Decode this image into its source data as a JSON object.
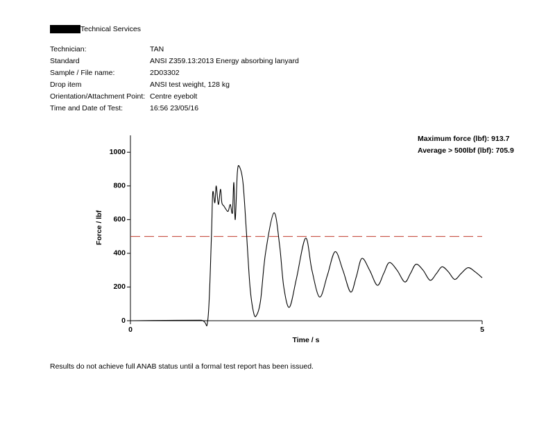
{
  "header": {
    "title": "Technical Services"
  },
  "fields": [
    {
      "label": "Technician:",
      "value": "TAN"
    },
    {
      "label": "Standard",
      "value": "ANSI Z359.13:2013 Energy absorbing lanyard"
    },
    {
      "label": "Sample / File name:",
      "value": "2D03302"
    },
    {
      "label": "Drop item",
      "value": "ANSI test weight, 128 kg"
    },
    {
      "label": "Orientation/Attachment Point:",
      "value": "Centre eyebolt"
    },
    {
      "label": "Time and Date of Test:",
      "value": "16:56 23/05/16"
    }
  ],
  "chart_data": {
    "type": "line",
    "x_label": "Time / s",
    "y_label": "Force / lbf",
    "annotations": [
      "Maximum force (lbf): 913.7",
      "Average > 500lbf (lbf): 705.9"
    ],
    "xlim": [
      0,
      5
    ],
    "xticks": [
      0,
      5
    ],
    "ylim": [
      0,
      1100
    ],
    "yticks": [
      0,
      200,
      400,
      600,
      800,
      1000
    ],
    "threshold": {
      "value": 500,
      "color": "#c0392b"
    },
    "x": [
      0,
      0.5,
      1.0,
      1.1,
      1.15,
      1.17,
      1.2,
      1.22,
      1.25,
      1.28,
      1.3,
      1.33,
      1.36,
      1.39,
      1.42,
      1.45,
      1.47,
      1.49,
      1.52,
      1.55,
      1.6,
      1.65,
      1.7,
      1.75,
      1.79,
      1.85,
      1.92,
      2.04,
      2.12,
      2.18,
      2.26,
      2.36,
      2.49,
      2.58,
      2.69,
      2.8,
      2.91,
      3.02,
      3.13,
      3.21,
      3.29,
      3.4,
      3.51,
      3.6,
      3.68,
      3.79,
      3.9,
      3.98,
      4.06,
      4.16,
      4.26,
      4.35,
      4.43,
      4.52,
      4.61,
      4.7,
      4.8,
      4.9,
      5.0
    ],
    "series": [
      {
        "color": "#000000",
        "values": [
          0,
          2,
          3,
          5,
          480,
          760,
          700,
          800,
          690,
          780,
          700,
          680,
          660,
          650,
          690,
          640,
          820,
          600,
          880,
          913.7,
          820,
          520,
          200,
          50,
          30,
          120,
          400,
          640,
          450,
          200,
          80,
          250,
          490,
          300,
          140,
          270,
          410,
          300,
          170,
          260,
          370,
          300,
          210,
          280,
          345,
          300,
          230,
          280,
          335,
          300,
          240,
          280,
          320,
          290,
          245,
          280,
          315,
          290,
          255
        ]
      }
    ]
  },
  "footer": "Results do not achieve full ANAB status until a formal test report has been issued."
}
